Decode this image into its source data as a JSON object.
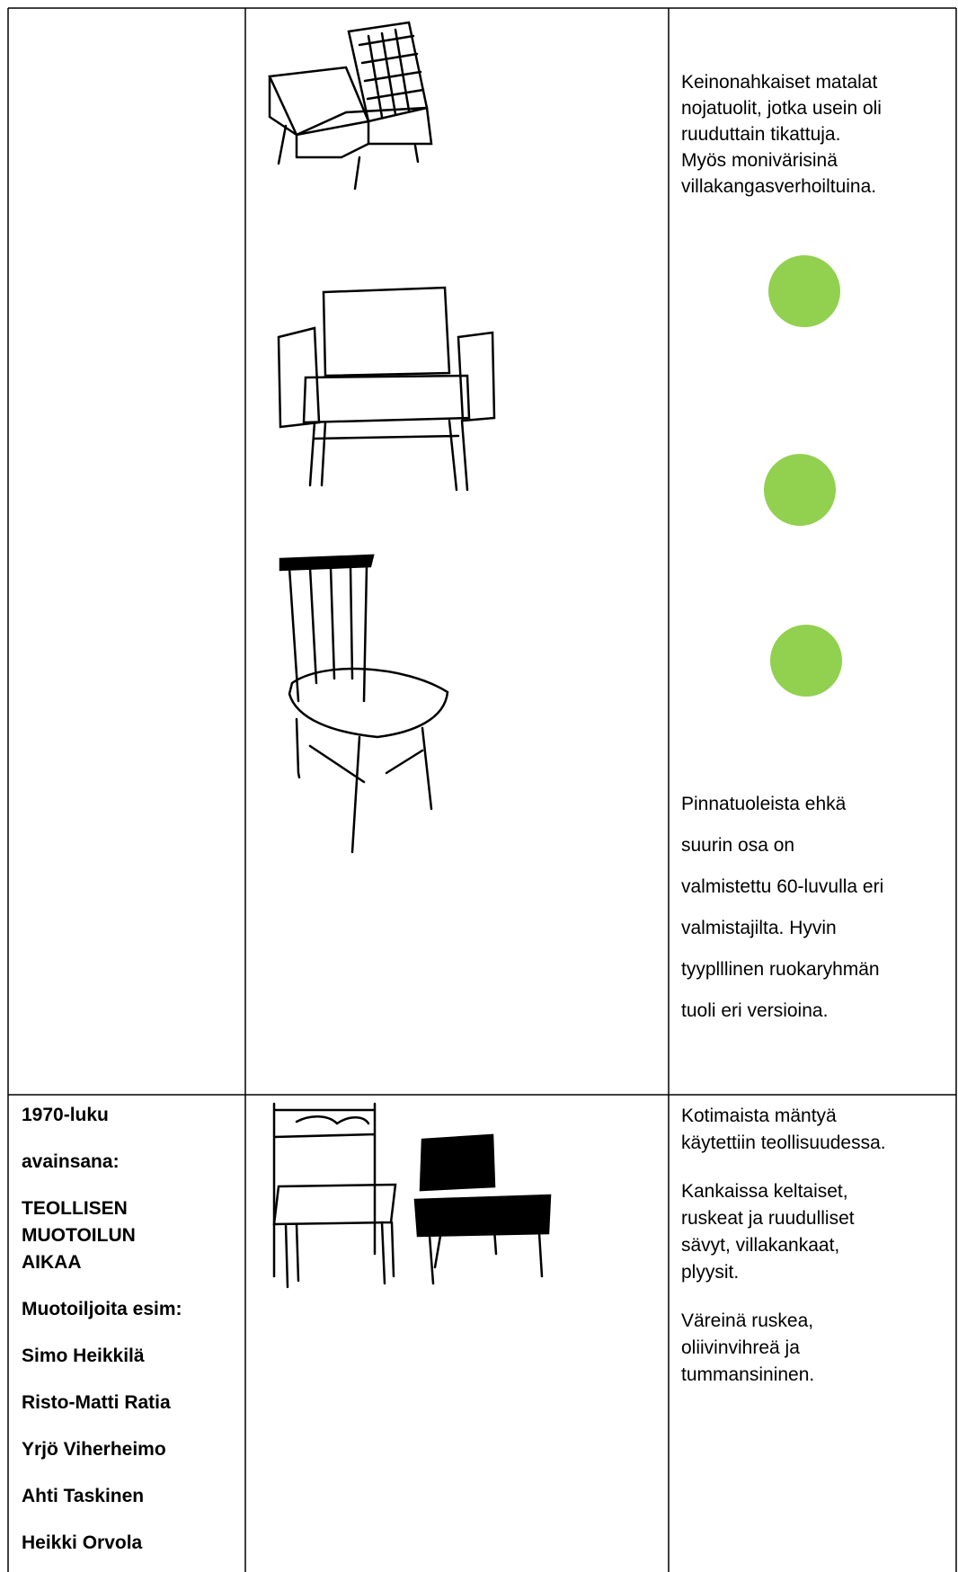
{
  "row1": {
    "notes": [
      [
        "Keinonahkaiset matalat",
        "nojatuolit, jotka usein oli",
        "ruuduttain tikattuja.",
        "Myös monivärisinä",
        "villakangasverhoiltuina."
      ],
      [
        "Pinnatuoleista ehkä",
        "suurin osa on",
        "valmistettu 60-luvulla eri",
        "valmistajilta. Hyvin",
        "tyyplllinen ruokaryhmän",
        "tuoli eri versioina."
      ]
    ]
  },
  "row2": {
    "heading": [
      [
        "1970-luku"
      ],
      [
        "avainsana:"
      ],
      [
        "TEOLLISEN",
        "MUOTOILUN",
        "AIKAA"
      ],
      [
        "Muotoiljoita esim:"
      ],
      [
        "Simo Heikkilä"
      ],
      [
        "Risto-Matti Ratia"
      ],
      [
        "Yrjö Viherheimo"
      ],
      [
        "Ahti Taskinen"
      ],
      [
        "Heikki Orvola"
      ]
    ],
    "notes": [
      [
        "Kotimaista mäntyä",
        "käytettiin teollisuudessa."
      ],
      [
        "Kankaissa keltaiset,",
        "ruskeat ja ruudulliset",
        "sävyt, villakankaat,",
        "plyysit."
      ],
      [
        "Väreinä ruskea,",
        "oliivinvihreä ja",
        "tummansininen."
      ]
    ]
  }
}
